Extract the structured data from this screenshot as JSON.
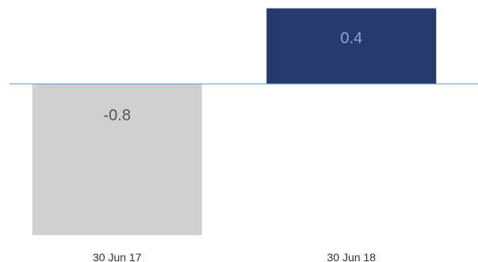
{
  "chart_data": {
    "type": "bar",
    "categories": [
      "30 Jun 17",
      "30 Jun 18"
    ],
    "values": [
      -0.8,
      0.4
    ],
    "data_labels": [
      "-0.8",
      "0.4"
    ],
    "ylim": [
      -0.8,
      0.4
    ],
    "grid": false,
    "title": "",
    "xlabel": "",
    "ylabel": "",
    "colors": {
      "bars": [
        "#d0d0d2",
        "#283a6d"
      ],
      "labels": [
        "#555555",
        "#7fa8d8"
      ],
      "zero_line": "#5b9bd5"
    }
  }
}
